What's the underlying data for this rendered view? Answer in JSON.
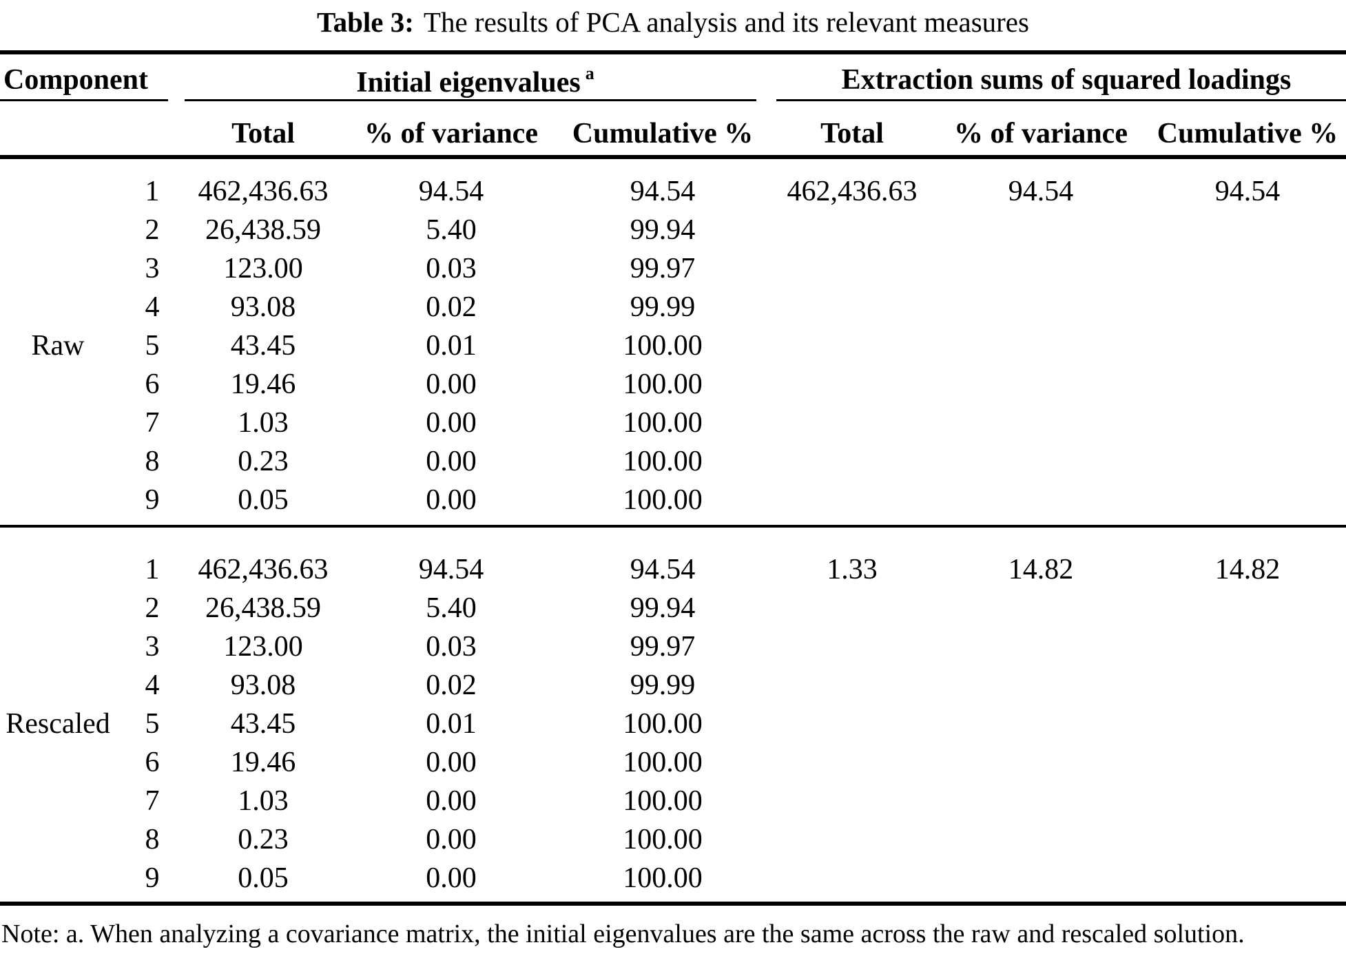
{
  "title": {
    "label": "Table 3:",
    "text": "The results of PCA analysis and its relevant measures"
  },
  "header": {
    "component": "Component",
    "group1": "Initial eigenvalues",
    "group1_note_mark": "a",
    "group2": "Extraction sums of squared loadings",
    "columns": [
      "Total",
      "% of variance",
      "Cumulative %",
      "Total",
      "% of variance",
      "Cumulative %"
    ]
  },
  "groups": [
    {
      "label": "Raw",
      "rows": [
        [
          "1",
          "462,436.63",
          "94.54",
          "94.54",
          "462,436.63",
          "94.54",
          "94.54"
        ],
        [
          "2",
          "26,438.59",
          "5.40",
          "99.94",
          "",
          "",
          ""
        ],
        [
          "3",
          "123.00",
          "0.03",
          "99.97",
          "",
          "",
          ""
        ],
        [
          "4",
          "93.08",
          "0.02",
          "99.99",
          "",
          "",
          ""
        ],
        [
          "5",
          "43.45",
          "0.01",
          "100.00",
          "",
          "",
          ""
        ],
        [
          "6",
          "19.46",
          "0.00",
          "100.00",
          "",
          "",
          ""
        ],
        [
          "7",
          "1.03",
          "0.00",
          "100.00",
          "",
          "",
          ""
        ],
        [
          "8",
          "0.23",
          "0.00",
          "100.00",
          "",
          "",
          ""
        ],
        [
          "9",
          "0.05",
          "0.00",
          "100.00",
          "",
          "",
          ""
        ]
      ]
    },
    {
      "label": "Rescaled",
      "rows": [
        [
          "1",
          "462,436.63",
          "94.54",
          "94.54",
          "1.33",
          "14.82",
          "14.82"
        ],
        [
          "2",
          "26,438.59",
          "5.40",
          "99.94",
          "",
          "",
          ""
        ],
        [
          "3",
          "123.00",
          "0.03",
          "99.97",
          "",
          "",
          ""
        ],
        [
          "4",
          "93.08",
          "0.02",
          "99.99",
          "",
          "",
          ""
        ],
        [
          "5",
          "43.45",
          "0.01",
          "100.00",
          "",
          "",
          ""
        ],
        [
          "6",
          "19.46",
          "0.00",
          "100.00",
          "",
          "",
          ""
        ],
        [
          "7",
          "1.03",
          "0.00",
          "100.00",
          "",
          "",
          ""
        ],
        [
          "8",
          "0.23",
          "0.00",
          "100.00",
          "",
          "",
          ""
        ],
        [
          "9",
          "0.05",
          "0.00",
          "100.00",
          "",
          "",
          ""
        ]
      ]
    }
  ],
  "note": "Note: a. When analyzing a covariance matrix, the initial eigenvalues are the same across the raw and rescaled solution."
}
